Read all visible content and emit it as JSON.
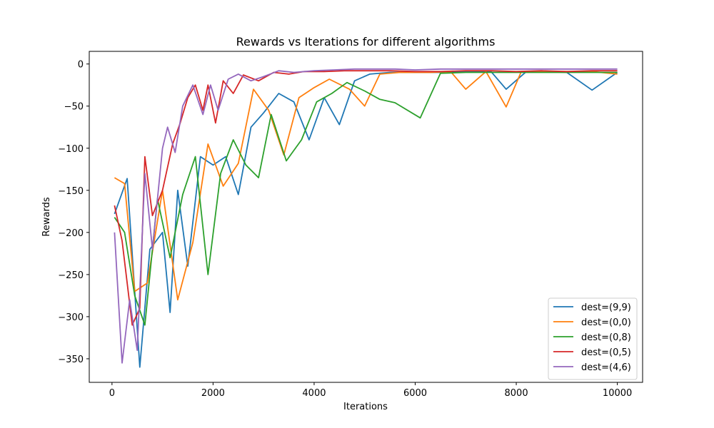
{
  "chart_data": {
    "type": "line",
    "title": "Rewards vs Iterations for different algorithms",
    "xlabel": "Iterations",
    "ylabel": "Rewards",
    "xlim": [
      -450,
      10500
    ],
    "ylim": [
      -378,
      15
    ],
    "x_ticks": [
      0,
      2000,
      4000,
      6000,
      8000,
      10000
    ],
    "x_tick_labels": [
      "0",
      "2000",
      "4000",
      "6000",
      "8000",
      "10000"
    ],
    "y_ticks": [
      0,
      -50,
      -100,
      -150,
      -200,
      -250,
      -300,
      -350
    ],
    "y_tick_labels": [
      "0",
      "−50",
      "−100",
      "−150",
      "−200",
      "−250",
      "−300",
      "−350"
    ],
    "grid": false,
    "legend_position": "lower-right",
    "series": [
      {
        "name": "dest=(9,9)",
        "color": "#1f77b4",
        "x": [
          50,
          300,
          550,
          750,
          1000,
          1150,
          1300,
          1500,
          1750,
          2000,
          2250,
          2500,
          2750,
          3000,
          3300,
          3600,
          3900,
          4200,
          4500,
          4800,
          5100,
          5500,
          6000,
          6500,
          7000,
          7500,
          7800,
          8200,
          8600,
          9000,
          9500,
          10000
        ],
        "y": [
          -178,
          -136,
          -360,
          -220,
          -200,
          -295,
          -150,
          -240,
          -110,
          -120,
          -110,
          -155,
          -75,
          -58,
          -35,
          -45,
          -90,
          -40,
          -72,
          -20,
          -12,
          -10,
          -10,
          -10,
          -9,
          -9,
          -30,
          -9,
          -9,
          -10,
          -31,
          -10
        ]
      },
      {
        "name": "dest=(0,0)",
        "color": "#ff7f0e",
        "x": [
          50,
          250,
          450,
          700,
          1000,
          1300,
          1600,
          1900,
          2200,
          2500,
          2800,
          3100,
          3400,
          3700,
          4000,
          4300,
          4700,
          5000,
          5300,
          5700,
          6000,
          6300,
          6700,
          7000,
          7400,
          7800,
          8100,
          8500,
          9000,
          9500,
          10000
        ],
        "y": [
          -135,
          -142,
          -270,
          -260,
          -150,
          -280,
          -212,
          -95,
          -145,
          -118,
          -30,
          -55,
          -108,
          -40,
          -28,
          -18,
          -30,
          -50,
          -12,
          -10,
          -10,
          -10,
          -9,
          -30,
          -9,
          -51,
          -9,
          -9,
          -9,
          -9,
          -12
        ]
      },
      {
        "name": "dest=(0,8)",
        "color": "#2ca02c",
        "x": [
          50,
          250,
          450,
          650,
          900,
          1150,
          1400,
          1650,
          1900,
          2150,
          2400,
          2650,
          2900,
          3150,
          3450,
          3750,
          4050,
          4350,
          4650,
          5000,
          5300,
          5600,
          6100,
          6500,
          7000,
          7500,
          8000,
          8500,
          9000,
          9500,
          10000
        ],
        "y": [
          -182,
          -200,
          -275,
          -310,
          -160,
          -230,
          -155,
          -110,
          -250,
          -130,
          -90,
          -120,
          -135,
          -60,
          -115,
          -90,
          -45,
          -35,
          -22,
          -32,
          -42,
          -46,
          -64,
          -11,
          -10,
          -10,
          -10,
          -10,
          -10,
          -10,
          -10
        ]
      },
      {
        "name": "dest=(0,5)",
        "color": "#d62728",
        "x": [
          50,
          200,
          400,
          550,
          650,
          800,
          1000,
          1200,
          1350,
          1500,
          1650,
          1800,
          1900,
          2050,
          2200,
          2400,
          2600,
          2900,
          3200,
          3500,
          3800,
          4200,
          4600,
          5000,
          5500,
          6000,
          6500,
          7000,
          7500,
          8000,
          8500,
          9000,
          9500,
          10000
        ],
        "y": [
          -168,
          -210,
          -310,
          -290,
          -110,
          -180,
          -150,
          -95,
          -70,
          -40,
          -25,
          -55,
          -25,
          -70,
          -20,
          -35,
          -13,
          -20,
          -10,
          -12,
          -9,
          -9,
          -8,
          -8,
          -8,
          -9,
          -9,
          -8,
          -8,
          -9,
          -8,
          -9,
          -8,
          -8
        ]
      },
      {
        "name": "dest=(4,6)",
        "color": "#9467bd",
        "x": [
          50,
          200,
          350,
          500,
          650,
          800,
          1000,
          1100,
          1250,
          1400,
          1600,
          1800,
          1950,
          2100,
          2300,
          2500,
          2750,
          3000,
          3300,
          3600,
          4000,
          4400,
          4800,
          5200,
          5600,
          6000,
          6500,
          7000,
          7500,
          8000,
          8500,
          9000,
          9500,
          10000
        ],
        "y": [
          -200,
          -355,
          -280,
          -340,
          -130,
          -220,
          -100,
          -75,
          -105,
          -50,
          -25,
          -60,
          -25,
          -55,
          -18,
          -12,
          -20,
          -15,
          -8,
          -10,
          -8,
          -7,
          -6,
          -6,
          -6,
          -7,
          -6,
          -6,
          -6,
          -6,
          -6,
          -6,
          -6,
          -6
        ]
      }
    ]
  }
}
